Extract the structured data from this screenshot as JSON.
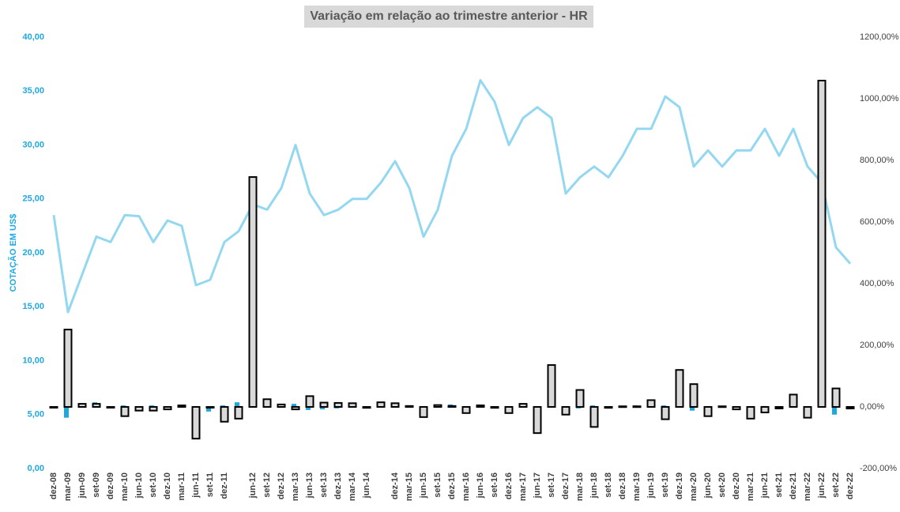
{
  "chart_data": {
    "type": "combo",
    "title": "Variação em relação ao trimestre anterior - HR",
    "y_label": "COTAÇÃO EM US$",
    "categories": [
      "dez-08",
      "mar-09",
      "jun-09",
      "set-09",
      "dez-09",
      "mar-10",
      "jun-10",
      "set-10",
      "dez-10",
      "mar-11",
      "jun-11",
      "set-11",
      "dez-11",
      null,
      "jun-12",
      "set-12",
      "dez-12",
      "mar-13",
      "jun-13",
      "set-13",
      "dez-13",
      "mar-14",
      "jun-14",
      null,
      "dez-14",
      "mar-15",
      "jun-15",
      "set-15",
      "dez-15",
      "mar-16",
      "jun-16",
      "set-16",
      "dez-16",
      "mar-17",
      "jun-17",
      "set-17",
      "dez-17",
      "mar-18",
      "jun-18",
      "set-18",
      "dez-18",
      "mar-19",
      "jun-19",
      "set-19",
      "dez-19",
      "mar-20",
      "jun-20",
      "set-20",
      "dez-20",
      "mar-21",
      "jun-21",
      "set-21",
      "dez-21",
      "mar-22",
      "jun-22",
      "set-22",
      "dez-22"
    ],
    "series": [
      {
        "type": "line",
        "color": "#93d8f0",
        "values": [
          23.5,
          14.5,
          18,
          21.5,
          21,
          23.5,
          23.4,
          21,
          23,
          22.5,
          17,
          17.5,
          21,
          22,
          24.5,
          24,
          26,
          30,
          25.5,
          23.5,
          24,
          25,
          25,
          26.5,
          28.5,
          26,
          21.5,
          24,
          29,
          31.5,
          36,
          34,
          30,
          32.5,
          33.5,
          32.5,
          25.5,
          27,
          28,
          27,
          29,
          31.5,
          31.5,
          34.5,
          33.5,
          28,
          29.5,
          28,
          29.5,
          29.5,
          31.5,
          29,
          31.5,
          28,
          26.5,
          20.5,
          19
        ]
      },
      {
        "type": "bar",
        "axis": "y2",
        "color": "#1fa8e0",
        "values": [
          0,
          -35,
          5,
          15,
          -2,
          5,
          -5,
          5,
          -5,
          5,
          0,
          -15,
          5,
          15,
          5,
          3,
          -3,
          10,
          -10,
          -8,
          -5,
          8,
          -2,
          3,
          8,
          2,
          -15,
          5,
          8,
          -3,
          8,
          2,
          -3,
          5,
          -3,
          3,
          -2,
          -5,
          5,
          2,
          3,
          5,
          2,
          5,
          2,
          -12,
          2,
          2,
          -3,
          2,
          3,
          -2,
          2,
          -5,
          0,
          -25,
          -8
        ]
      },
      {
        "type": "bar",
        "axis": "y2",
        "color": "#d9d9d9",
        "stroke": "#000000",
        "values": [
          0,
          251,
          10,
          10,
          -2,
          -30,
          -12,
          -12,
          -8,
          5,
          -103,
          0,
          -48,
          -38,
          746,
          25,
          8,
          -8,
          35,
          14,
          13,
          12,
          -3,
          15,
          12,
          3,
          -33,
          6,
          3,
          -20,
          5,
          -3,
          -20,
          10,
          -85,
          136,
          -25,
          55,
          -65,
          -3,
          2,
          2,
          22,
          -40,
          120,
          74,
          -30,
          2,
          -8,
          -38,
          -18,
          -5,
          40,
          -35,
          1059,
          60,
          -5
        ]
      }
    ],
    "ylim": [
      0,
      40
    ],
    "yticks": [
      {
        "value": 0,
        "label": "0,00"
      },
      {
        "value": 5,
        "label": "5,00"
      },
      {
        "value": 10,
        "label": "10,00"
      },
      {
        "value": 15,
        "label": "15,00"
      },
      {
        "value": 20,
        "label": "20,00"
      },
      {
        "value": 25,
        "label": "25,00"
      },
      {
        "value": 30,
        "label": "30,00"
      },
      {
        "value": 35,
        "label": "35,00"
      },
      {
        "value": 40,
        "label": "40,00"
      }
    ],
    "y2lim": [
      -200,
      1200
    ],
    "y2ticks": [
      {
        "value": -200,
        "label": "-200,00%"
      },
      {
        "value": 0,
        "label": "0,00%"
      },
      {
        "value": 200,
        "label": "200,00%"
      },
      {
        "value": 400,
        "label": "400,00%"
      },
      {
        "value": 600,
        "label": "600,00%"
      },
      {
        "value": 800,
        "label": "800,00%"
      },
      {
        "value": 1000,
        "label": "1000,00%"
      },
      {
        "value": 1200,
        "label": "1200,00%"
      }
    ],
    "grid": false
  }
}
